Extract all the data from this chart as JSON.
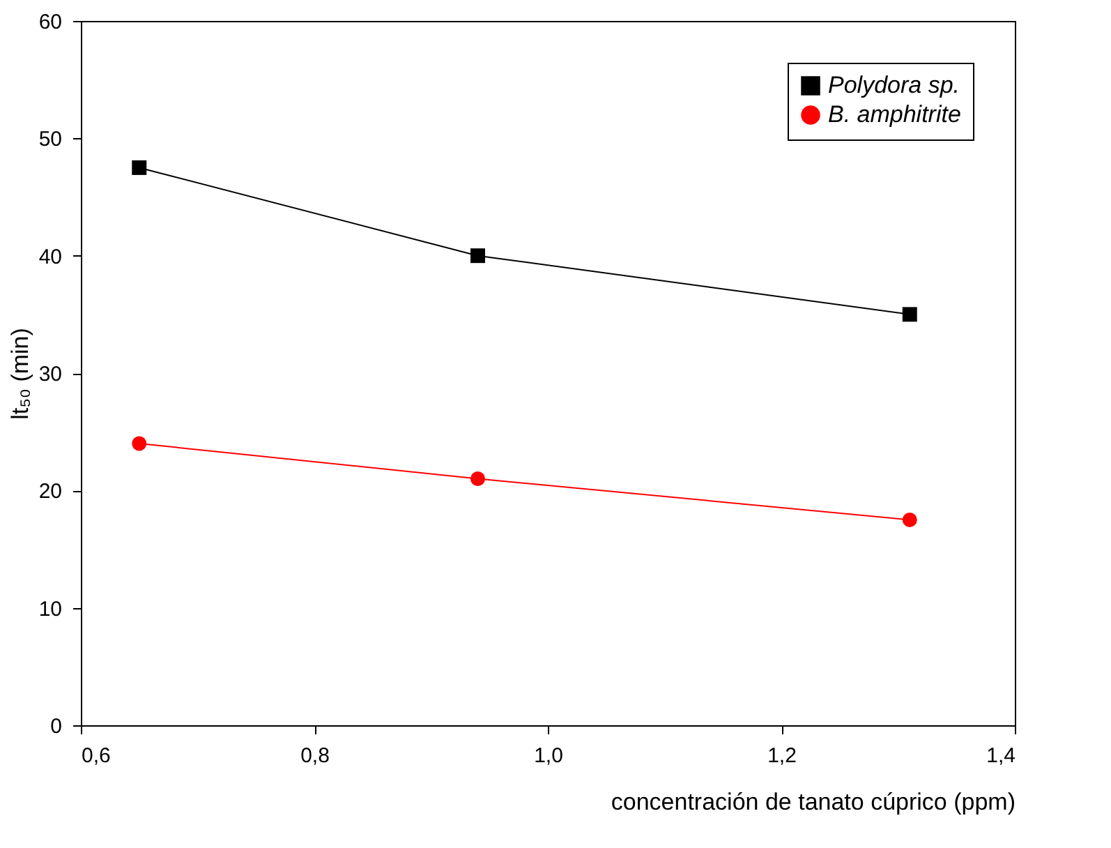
{
  "chart_data": {
    "type": "line",
    "xlabel": "concentración de tanato cúprico (ppm)",
    "ylabel": "lt₅₀ (min)",
    "x": [
      0.65,
      0.94,
      1.31
    ],
    "series": [
      {
        "name": "Polydora sp.",
        "color": "#000000",
        "marker": "square",
        "values": [
          47.5,
          40,
          35
        ]
      },
      {
        "name": "B. amphitrite",
        "color": "#ff0000",
        "marker": "circle",
        "values": [
          24,
          21,
          17.5
        ]
      }
    ],
    "xlim": [
      0.6,
      1.4
    ],
    "xticks": [
      {
        "value": 0.6,
        "label": "0,6"
      },
      {
        "value": 0.8,
        "label": "0,8"
      },
      {
        "value": 1.0,
        "label": "1,0"
      },
      {
        "value": 1.2,
        "label": "1,2"
      },
      {
        "value": 1.4,
        "label": "1,4"
      }
    ],
    "ylim": [
      0,
      60
    ],
    "yticks": [
      0,
      10,
      20,
      30,
      40,
      50,
      60
    ],
    "legend": "top right",
    "grid": false,
    "line_style": "solid"
  }
}
